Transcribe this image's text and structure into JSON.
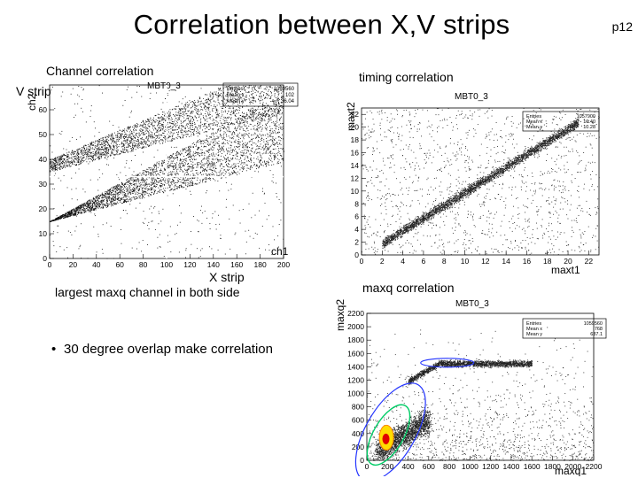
{
  "slide": {
    "title": "Correlation between X,V strips",
    "page": "p12"
  },
  "labels": {
    "channel_correlation": "Channel correlation",
    "v_strip": "V strip",
    "x_strip": "X strip",
    "largest_maxq": "largest maxq channel in both side",
    "timing_correlation": "timing correlation",
    "maxq_correlation": "maxq correlation"
  },
  "bullets": [
    "30 degree overlap make correlation"
  ],
  "chart_data": [
    {
      "type": "scatter",
      "title": "MBT0_3",
      "xlabel": "ch1",
      "ylabel": "ch2",
      "xlim": [
        0,
        200
      ],
      "ylim": [
        0,
        70
      ],
      "xticks": [
        0,
        20,
        40,
        60,
        80,
        100,
        120,
        140,
        160,
        180,
        200
      ],
      "yticks": [
        0,
        10,
        20,
        30,
        40,
        50,
        60
      ],
      "stats": [
        [
          "Entries",
          "1059560"
        ],
        [
          "Mean x",
          "102"
        ],
        [
          "Mean y",
          "36.04"
        ]
      ],
      "description": "two diagonal bands of correlated channel pairs"
    },
    {
      "type": "scatter",
      "title": "MBT0_3",
      "xlabel": "maxt1",
      "ylabel": "maxt2",
      "xlim": [
        0,
        23
      ],
      "ylim": [
        0,
        23
      ],
      "xticks": [
        0,
        2,
        4,
        6,
        8,
        10,
        12,
        14,
        16,
        18,
        20,
        22
      ],
      "yticks": [
        0,
        2,
        4,
        6,
        8,
        10,
        12,
        14,
        16,
        18,
        20,
        22
      ],
      "stats": [
        [
          "Entries",
          "1057900"
        ],
        [
          "Mean x",
          "10.40"
        ],
        [
          "Mean y",
          "10.28"
        ]
      ],
      "description": "diagonal band maxt2 ≈ maxt1"
    },
    {
      "type": "scatter",
      "title": "MBT0_3",
      "xlabel": "maxq1",
      "ylabel": "maxq2",
      "xlim": [
        0,
        2200
      ],
      "ylim": [
        0,
        2200
      ],
      "xticks": [
        0,
        200,
        400,
        600,
        800,
        1000,
        1200,
        1400,
        1600,
        1800,
        2000,
        2200
      ],
      "yticks": [
        0,
        200,
        400,
        600,
        800,
        1000,
        1200,
        1400,
        1600,
        1800,
        2000,
        2200
      ],
      "stats": [
        [
          "Entries",
          "1059560"
        ],
        [
          "Mean x",
          "768"
        ],
        [
          "Mean y",
          "637.1"
        ]
      ],
      "description": "dense cluster near origin rising to a plateau near 1500"
    }
  ]
}
